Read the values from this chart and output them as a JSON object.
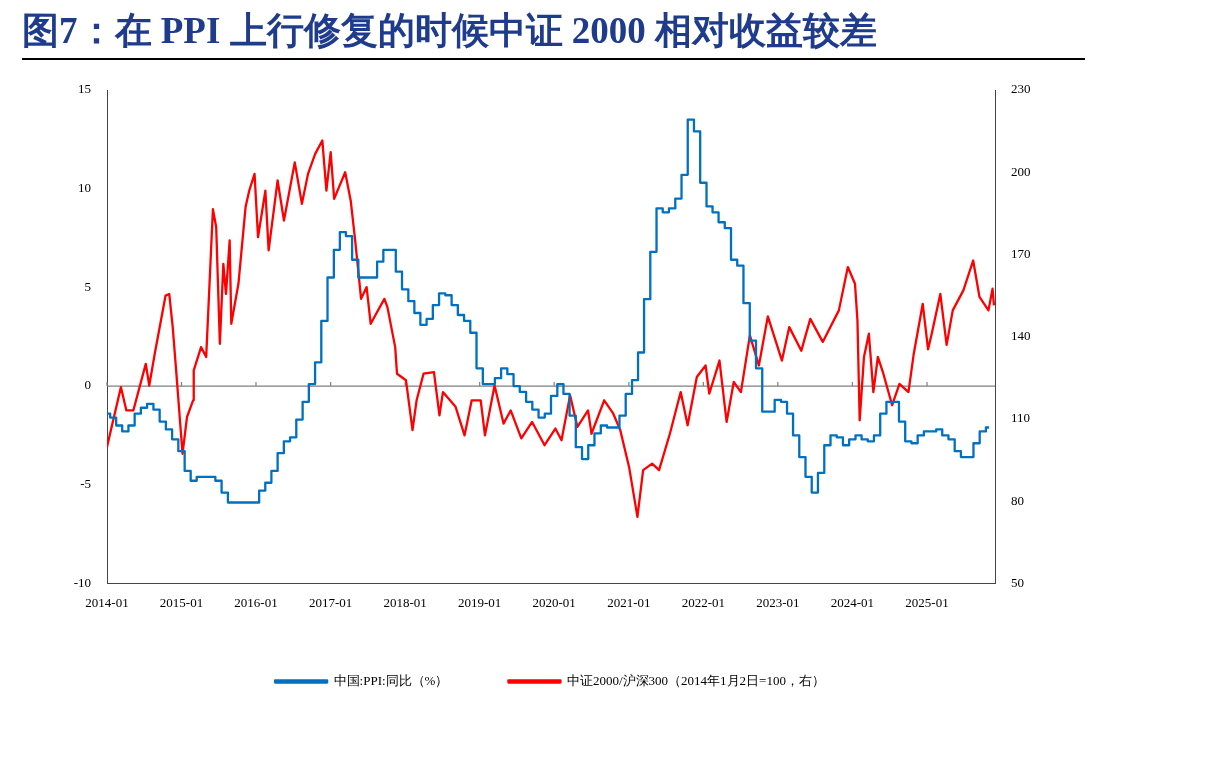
{
  "chart_data": {
    "type": "line",
    "title": "图7：在 PPI 上行修复的时候中证 2000 相对收益较差",
    "xlim": [
      "2014-01-01",
      "2025-11-30"
    ],
    "xticks": [
      "2014-01",
      "2015-01",
      "2016-01",
      "2017-01",
      "2018-01",
      "2019-01",
      "2020-01",
      "2021-01",
      "2022-01",
      "2023-01",
      "2024-01",
      "2025-01"
    ],
    "ylim": [
      -10,
      15
    ],
    "yticks": [
      -10,
      -5,
      0,
      5,
      10,
      15
    ],
    "y2lim": [
      50,
      230
    ],
    "y2ticks": [
      50,
      80,
      110,
      140,
      170,
      200,
      230
    ],
    "legend": "bottom",
    "ref_lines": [
      {
        "axis": "y",
        "value": 0,
        "color": "#808080"
      }
    ],
    "series": [
      {
        "name": "中国:PPI:同比（%）",
        "type": "step",
        "color": "#0070c0",
        "x": [
          "2014-01",
          "2014-02",
          "2014-03",
          "2014-04",
          "2014-05",
          "2014-06",
          "2014-07",
          "2014-08",
          "2014-09",
          "2014-10",
          "2014-11",
          "2014-12",
          "2015-01",
          "2015-02",
          "2015-03",
          "2015-04",
          "2015-05",
          "2015-06",
          "2015-07",
          "2015-08",
          "2015-09",
          "2015-10",
          "2015-11",
          "2015-12",
          "2016-01",
          "2016-02",
          "2016-03",
          "2016-04",
          "2016-05",
          "2016-06",
          "2016-07",
          "2016-08",
          "2016-09",
          "2016-10",
          "2016-11",
          "2016-12",
          "2017-01",
          "2017-02",
          "2017-03",
          "2017-04",
          "2017-05",
          "2017-06",
          "2017-07",
          "2017-08",
          "2017-09",
          "2017-10",
          "2017-11",
          "2017-12",
          "2018-01",
          "2018-02",
          "2018-03",
          "2018-04",
          "2018-05",
          "2018-06",
          "2018-07",
          "2018-08",
          "2018-09",
          "2018-10",
          "2018-11",
          "2018-12",
          "2019-01",
          "2019-02",
          "2019-03",
          "2019-04",
          "2019-05",
          "2019-06",
          "2019-07",
          "2019-08",
          "2019-09",
          "2019-10",
          "2019-11",
          "2019-12",
          "2020-01",
          "2020-02",
          "2020-03",
          "2020-04",
          "2020-05",
          "2020-06",
          "2020-07",
          "2020-08",
          "2020-09",
          "2020-10",
          "2020-11",
          "2020-12",
          "2021-01",
          "2021-02",
          "2021-03",
          "2021-04",
          "2021-05",
          "2021-06",
          "2021-07",
          "2021-08",
          "2021-09",
          "2021-10",
          "2021-11",
          "2021-12",
          "2022-01",
          "2022-02",
          "2022-03",
          "2022-04",
          "2022-05",
          "2022-06",
          "2022-07",
          "2022-08",
          "2022-09",
          "2022-10",
          "2022-11",
          "2022-12",
          "2023-01",
          "2023-02",
          "2023-03",
          "2023-04",
          "2023-05",
          "2023-06",
          "2023-07",
          "2023-08",
          "2023-09",
          "2023-10",
          "2023-11",
          "2023-12",
          "2024-01",
          "2024-02",
          "2024-03",
          "2024-04",
          "2024-05",
          "2024-06",
          "2024-07",
          "2024-08",
          "2024-09",
          "2024-10",
          "2024-11",
          "2024-12",
          "2025-01",
          "2025-02",
          "2025-03",
          "2025-04",
          "2025-05",
          "2025-06",
          "2025-07",
          "2025-08",
          "2025-09",
          "2025-10",
          "2025-11"
        ],
        "values": [
          -1.4,
          -1.6,
          -2.0,
          -2.3,
          -2.0,
          -1.4,
          -1.1,
          -0.9,
          -1.2,
          -1.8,
          -2.2,
          -2.7,
          -3.3,
          -4.3,
          -4.8,
          -4.6,
          -4.6,
          -4.6,
          -4.8,
          -5.4,
          -5.9,
          -5.9,
          -5.9,
          -5.9,
          -5.9,
          -5.3,
          -4.9,
          -4.3,
          -3.4,
          -2.8,
          -2.6,
          -1.7,
          -0.8,
          0.1,
          1.2,
          3.3,
          5.5,
          6.9,
          7.8,
          7.6,
          6.4,
          5.5,
          5.5,
          5.5,
          6.3,
          6.9,
          6.9,
          5.8,
          4.9,
          4.3,
          3.7,
          3.1,
          3.4,
          4.1,
          4.7,
          4.6,
          4.1,
          3.6,
          3.3,
          2.7,
          0.9,
          0.1,
          0.1,
          0.4,
          0.9,
          0.6,
          0,
          -0.3,
          -0.8,
          -1.2,
          -1.6,
          -1.4,
          -0.5,
          0.1,
          -0.4,
          -1.5,
          -3.1,
          -3.7,
          -3.0,
          -2.4,
          -2.0,
          -2.1,
          -2.1,
          -1.5,
          -0.4,
          0.3,
          1.7,
          4.4,
          6.8,
          9.0,
          8.8,
          9.0,
          9.5,
          10.7,
          13.5,
          12.9,
          10.3,
          9.1,
          8.8,
          8.3,
          8.0,
          6.4,
          6.1,
          4.2,
          2.3,
          0.9,
          -1.3,
          -1.3,
          -0.7,
          -0.8,
          -1.4,
          -2.5,
          -3.6,
          -4.6,
          -5.4,
          -4.4,
          -3.0,
          -2.5,
          -2.6,
          -3.0,
          -2.7,
          -2.5,
          -2.7,
          -2.8,
          -2.5,
          -1.4,
          -0.8,
          -0.8,
          -1.8,
          -2.8,
          -2.9,
          -2.5,
          -2.3,
          -2.3,
          -2.2,
          -2.5,
          -2.7,
          -3.3,
          -3.6,
          -3.6,
          -2.9,
          -2.3,
          -2.1
        ]
      },
      {
        "name": "中证2000/沪深300（2014年1月2日=100，右）",
        "type": "line",
        "axis": "y2",
        "color": "#ff0000",
        "x": [
          "2014-01-01",
          "2014-03-10",
          "2014-04-06",
          "2014-05-10",
          "2014-07-10",
          "2014-07-27",
          "2014-08-23",
          "2014-10-15",
          "2014-11-02",
          "2014-11-19",
          "2014-12-07",
          "2015-01-06",
          "2015-01-28",
          "2015-02-27",
          "2015-03-02",
          "2015-04-07",
          "2015-05-02",
          "2015-06-04",
          "2015-06-20",
          "2015-07-08",
          "2015-07-25",
          "2015-08-07",
          "2015-08-25",
          "2015-09-02",
          "2015-10-07",
          "2015-11-11",
          "2015-11-29",
          "2015-12-25",
          "2016-01-11",
          "2016-02-16",
          "2016-03-03",
          "2016-04-16",
          "2016-05-17",
          "2016-07-09",
          "2016-08-13",
          "2016-09-12",
          "2016-10-17",
          "2016-11-21",
          "2016-12-11",
          "2017-01-01",
          "2017-01-18",
          "2017-03-13",
          "2017-04-09",
          "2017-05-01",
          "2017-05-30",
          "2017-06-26",
          "2017-07-16",
          "2017-09-21",
          "2017-10-06",
          "2017-11-13",
          "2017-11-22",
          "2018-01-05",
          "2018-02-06",
          "2018-02-26",
          "2018-04-01",
          "2018-05-22",
          "2018-06-18",
          "2018-07-05",
          "2018-09-05",
          "2018-10-19",
          "2018-11-23",
          "2019-01-06",
          "2019-01-27",
          "2019-03-15",
          "2019-04-28",
          "2019-06-02",
          "2019-07-24",
          "2019-09-15",
          "2019-11-15",
          "2020-01-07",
          "2020-02-06",
          "2020-03-19",
          "2020-04-24",
          "2020-06-15",
          "2020-07-02",
          "2020-09-02",
          "2020-10-16",
          "2020-11-20",
          "2021-01-02",
          "2021-02-12",
          "2021-03-12",
          "2021-04-25",
          "2021-05-29",
          "2021-07-21",
          "2021-09-12",
          "2021-10-16",
          "2021-11-30",
          "2022-01-12",
          "2022-01-30",
          "2022-03-21",
          "2022-04-25",
          "2022-05-30",
          "2022-07-04",
          "2022-08-17",
          "2022-09-30",
          "2022-11-13",
          "2023-01-21",
          "2023-02-26",
          "2023-04-26",
          "2023-06-09",
          "2023-08-09",
          "2023-10-27",
          "2023-12-10",
          "2024-01-14",
          "2024-01-26",
          "2024-02-06",
          "2024-02-27",
          "2024-03-22",
          "2024-04-13",
          "2024-05-05",
          "2024-06-01",
          "2024-07-14",
          "2024-08-19",
          "2024-10-02",
          "2024-10-28",
          "2024-12-11",
          "2025-01-06",
          "2025-01-24",
          "2025-03-07",
          "2025-04-07",
          "2025-05-07",
          "2025-06-28",
          "2025-08-15",
          "2025-09-15",
          "2025-10-29",
          "2025-11-18",
          "2025-11-25"
        ],
        "values": [
          99.8,
          121.6,
          113.1,
          113.1,
          130.1,
          122.2,
          133.8,
          155.0,
          155.6,
          143.5,
          126.5,
          97.3,
          110.7,
          116.8,
          127.7,
          136.2,
          132.6,
          186.5,
          180,
          137.4,
          166.6,
          155.6,
          175.1,
          144.7,
          159.3,
          187.3,
          193.3,
          199.4,
          176.3,
          193.3,
          171.5,
          197,
          182.4,
          203.6,
          188.5,
          199.4,
          206.7,
          211.6,
          193.3,
          207.3,
          190.3,
          200,
          189.7,
          175.1,
          153.8,
          158.1,
          144.7,
          153.8,
          150.8,
          136.2,
          126.5,
          124.1,
          105.9,
          116.8,
          126.5,
          127.1,
          111.3,
          119.8,
          114.4,
          104.0,
          116.8,
          116.8,
          104,
          122.2,
          108.3,
          113.1,
          102.9,
          108.9,
          100.4,
          106.5,
          102.2,
          118.6,
          107.1,
          113.1,
          104.6,
          116.8,
          112,
          105.9,
          92.5,
          74.3,
          91.3,
          93.7,
          91.3,
          104.6,
          119.8,
          107.7,
          125.3,
          129.5,
          119.2,
          131.3,
          108.9,
          123.5,
          119.8,
          140.5,
          129.5,
          147.4,
          131.3,
          143.5,
          134.9,
          146.5,
          138.1,
          149.6,
          165.4,
          159.3,
          146,
          109.5,
          132.6,
          141.1,
          119.8,
          132.6,
          126.5,
          115,
          122.8,
          119.8,
          133.8,
          152.0,
          135.4,
          141.1,
          155.6,
          137,
          149.6,
          156.9,
          167.8,
          154.5,
          149.6,
          157.5,
          151.4
        ]
      }
    ]
  }
}
